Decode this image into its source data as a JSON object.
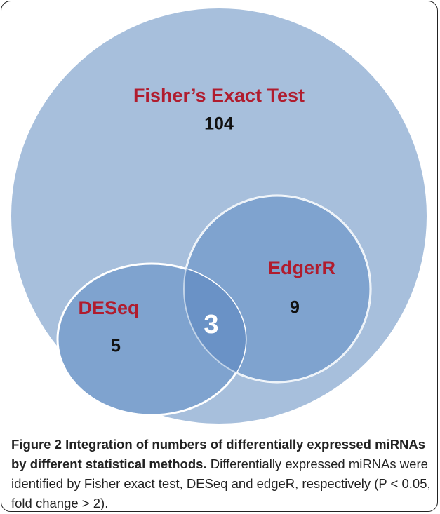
{
  "outer_set": {
    "label": "Fisher’s Exact Test",
    "count": "104"
  },
  "set_b": {
    "label": "EdgerR",
    "count": "9"
  },
  "set_c": {
    "label": "DESeq",
    "count": "5"
  },
  "intersection": {
    "count": "3"
  },
  "caption": {
    "figure_label": "Figure 2",
    "title": "Integration of numbers of differentially expressed miRNAs by different statistical methods.",
    "body": "Differentially expressed miRNAs were identified by Fisher exact test, DESeq and edgeR, respectively (P < 0.05, fold change > 2)."
  }
}
